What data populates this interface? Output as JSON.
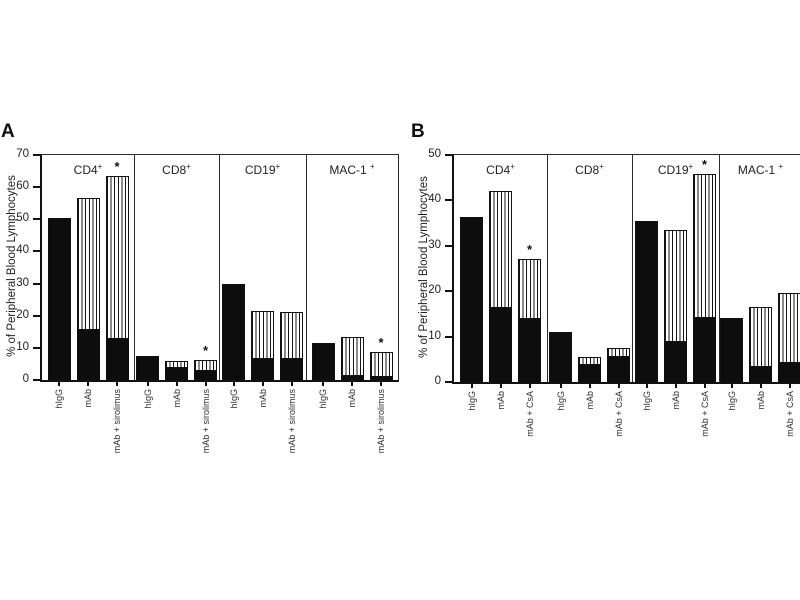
{
  "chart_data": [
    {
      "type": "bar",
      "panel": "A",
      "ylabel": "% of Peripheral Blood Lymphocytes",
      "ylim": [
        0,
        70
      ],
      "yticks": [
        0,
        10,
        20,
        30,
        40,
        50,
        60,
        70
      ],
      "stacked": true,
      "bar_styles": {
        "solid_color": "#0d0d0d",
        "striped": "white with thin vertical black stripes"
      },
      "significance_marker": "*",
      "legend_position": "none",
      "grid": false,
      "groups": [
        {
          "label": "CD4+",
          "bars": [
            {
              "condition": "hIgG",
              "solid": 50.5,
              "total": 50.5,
              "significant": false
            },
            {
              "condition": "mAb",
              "solid": 16,
              "total": 56.5,
              "significant": false
            },
            {
              "condition": "mAb + sirolimus",
              "solid": 13,
              "total": 63.5,
              "significant": true
            }
          ]
        },
        {
          "label": "CD8+",
          "bars": [
            {
              "condition": "hIgG",
              "solid": 7.5,
              "total": 7.5,
              "significant": false
            },
            {
              "condition": "mAb",
              "solid": 4,
              "total": 6,
              "significant": false
            },
            {
              "condition": "mAb + sirolimus",
              "solid": 3,
              "total": 6.2,
              "significant": true
            }
          ]
        },
        {
          "label": "CD19+",
          "bars": [
            {
              "condition": "hIgG",
              "solid": 30,
              "total": 30,
              "significant": false
            },
            {
              "condition": "mAb",
              "solid": 7,
              "total": 21.5,
              "significant": false
            },
            {
              "condition": "mAb + sirolimus",
              "solid": 7,
              "total": 21.3,
              "significant": false
            }
          ]
        },
        {
          "label": "MAC-1 +",
          "bars": [
            {
              "condition": "hIgG",
              "solid": 11.5,
              "total": 11.5,
              "significant": false
            },
            {
              "condition": "mAb",
              "solid": 1.5,
              "total": 13.3,
              "significant": false
            },
            {
              "condition": "mAb + sirolimus",
              "solid": 1.3,
              "total": 8.6,
              "significant": true
            }
          ]
        }
      ]
    },
    {
      "type": "bar",
      "panel": "B",
      "ylabel": "% of Peripheral Blood Lymphocytes",
      "ylim": [
        0,
        50
      ],
      "yticks": [
        0,
        10,
        20,
        30,
        40,
        50
      ],
      "stacked": true,
      "bar_styles": {
        "solid_color": "#0d0d0d",
        "striped": "white with thin vertical black stripes"
      },
      "significance_marker": "*",
      "legend_position": "none",
      "grid": false,
      "groups": [
        {
          "label": "CD4+",
          "bars": [
            {
              "condition": "hIgG",
              "solid": 36.3,
              "total": 36.3,
              "significant": false
            },
            {
              "condition": "mAb",
              "solid": 16.5,
              "total": 42,
              "significant": false
            },
            {
              "condition": "mAb + CsA",
              "solid": 14,
              "total": 27.2,
              "significant": true
            }
          ]
        },
        {
          "label": "CD8+",
          "bars": [
            {
              "condition": "hIgG",
              "solid": 11,
              "total": 11,
              "significant": false
            },
            {
              "condition": "mAb",
              "solid": 4,
              "total": 5.4,
              "significant": false
            },
            {
              "condition": "mAb + CsA",
              "solid": 5.8,
              "total": 7.5,
              "significant": false
            }
          ]
        },
        {
          "label": "CD19+",
          "bars": [
            {
              "condition": "hIgG",
              "solid": 35.5,
              "total": 35.5,
              "significant": false
            },
            {
              "condition": "mAb",
              "solid": 9,
              "total": 33.5,
              "significant": false
            },
            {
              "condition": "mAb + CsA",
              "solid": 14.3,
              "total": 45.8,
              "significant": true
            }
          ]
        },
        {
          "label": "MAC-1 +",
          "bars": [
            {
              "condition": "hIgG",
              "solid": 14,
              "total": 14,
              "significant": false
            },
            {
              "condition": "mAb",
              "solid": 3.5,
              "total": 16.5,
              "significant": false
            },
            {
              "condition": "mAb + CsA",
              "solid": 4.5,
              "total": 19.6,
              "significant": false
            }
          ]
        }
      ]
    }
  ]
}
